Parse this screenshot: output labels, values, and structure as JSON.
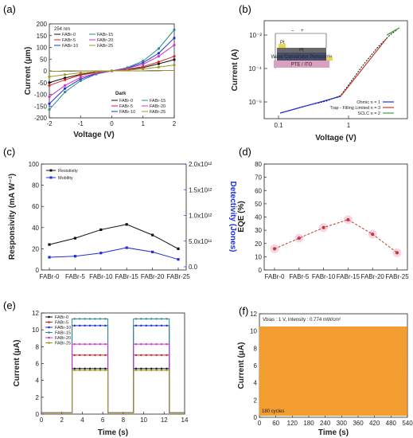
{
  "colors": {
    "black": "#111111",
    "red": "#d62020",
    "blue": "#1f2fd8",
    "teal": "#2a8c8c",
    "magenta": "#cc33cc",
    "olive": "#9a9a20",
    "orange": "#f39c30",
    "dark_red": "#c0392b",
    "pink": "#f2b6d6"
  },
  "chart_data": [
    {
      "panel": "(a)",
      "type": "line",
      "xlabel": "Voltage (V)",
      "ylabel": "Current (μm)",
      "xlim": [
        -2,
        2
      ],
      "ylim": [
        -200,
        200
      ],
      "xticks": [
        -2,
        -1,
        0,
        1,
        2
      ],
      "yticks": [
        -200,
        -150,
        -100,
        -50,
        0,
        50,
        100,
        150,
        200
      ],
      "annotation": "254 nm",
      "dark_label": "Dark",
      "x": [
        -2,
        -1.5,
        -1,
        -0.5,
        0,
        0.5,
        1,
        1.5,
        2
      ],
      "series": [
        {
          "name": "FABr-0",
          "color": "#111111",
          "light": [
            -50,
            -30,
            -15,
            -6,
            0,
            6,
            14,
            30,
            48
          ],
          "dark": [
            -2,
            -1,
            -0.5,
            -0.2,
            0,
            0.2,
            0.5,
            1,
            2
          ]
        },
        {
          "name": "FABr-5",
          "color": "#d62020",
          "light": [
            -62,
            -38,
            -18,
            -7,
            0,
            7,
            18,
            38,
            62
          ],
          "dark": [
            -2,
            -1,
            -0.5,
            -0.2,
            0,
            0.2,
            0.5,
            1,
            2
          ]
        },
        {
          "name": "FABr-10",
          "color": "#1f2fd8",
          "light": [
            -140,
            -75,
            -35,
            -12,
            0,
            12,
            35,
            75,
            140
          ],
          "dark": [
            -2,
            -1,
            -0.5,
            -0.2,
            0,
            0.2,
            0.5,
            1,
            2
          ]
        },
        {
          "name": "FABr-15",
          "color": "#2a8c8c",
          "light": [
            -165,
            -90,
            -42,
            -14,
            0,
            14,
            42,
            95,
            175
          ],
          "dark": [
            -2,
            -1,
            -0.5,
            -0.2,
            0,
            0.2,
            0.5,
            1,
            2
          ]
        },
        {
          "name": "FABr-20",
          "color": "#cc33cc",
          "light": [
            -110,
            -62,
            -28,
            -10,
            0,
            10,
            28,
            62,
            110
          ],
          "dark": [
            -2,
            -1,
            -0.5,
            -0.2,
            0,
            0.2,
            0.5,
            1,
            2
          ]
        },
        {
          "name": "FABr-25",
          "color": "#9a9a20",
          "light": [
            -25,
            -16,
            -8,
            -3,
            0,
            3,
            8,
            16,
            25
          ],
          "dark": [
            -2,
            -1,
            -0.5,
            -0.2,
            0,
            0.2,
            0.5,
            1,
            2
          ]
        }
      ]
    },
    {
      "panel": "(b)",
      "type": "line",
      "scale": "log-log",
      "xlabel": "Voltage (V)",
      "ylabel": "Current (A)",
      "xticks": [
        "0.1",
        "1"
      ],
      "yticks": [
        "10⁻⁶",
        "10⁻⁴",
        "10⁻²"
      ],
      "inset_label": "Pt",
      "inset_layers": [
        "Pt",
        "Wave Conversion Perovskite",
        "PTE / ITO"
      ],
      "inset_signs": [
        "–",
        "+"
      ],
      "legend": [
        "Ohmic n = 1",
        "Trap - Filling Limited n = 3",
        "SCLC n = 2"
      ],
      "legend_colors": [
        "#1f2fd8",
        "#c0392b",
        "#3aa83a"
      ]
    },
    {
      "panel": "(c)",
      "type": "line",
      "ylabel": "Responsivity (mA W⁻¹)",
      "y2label": "Detectivity (Jones)",
      "categories": [
        "FABr-0",
        "FABr-5",
        "FABr-10",
        "FABr-15",
        "FABr-20",
        "FABr-25"
      ],
      "ylim": [
        0,
        100
      ],
      "yticks": [
        0,
        20,
        40,
        60,
        80,
        100
      ],
      "y2ticks": [
        "0.0",
        "5.0x10¹¹",
        "1.0x10¹²",
        "1.5x10¹²",
        "2.0x10¹²"
      ],
      "series": [
        {
          "name": "Resistivity",
          "color": "#111111",
          "values": [
            24,
            30,
            38,
            43,
            33,
            20
          ]
        },
        {
          "name": "Mobility",
          "color": "#1f2fd8",
          "values": [
            12,
            13,
            16,
            21,
            17,
            10
          ]
        }
      ]
    },
    {
      "panel": "(d)",
      "type": "line",
      "ylabel": "EQE (%)",
      "categories": [
        "FABr-0",
        "FABr-5",
        "FABr-10",
        "FABr-15",
        "FABr-20",
        "FABr-25"
      ],
      "ylim": [
        0,
        80
      ],
      "yticks": [
        0,
        10,
        20,
        30,
        40,
        50,
        60,
        70,
        80
      ],
      "series": [
        {
          "name": "",
          "color": "#c0392b",
          "values": [
            16,
            24,
            32,
            38,
            27,
            13
          ]
        }
      ]
    },
    {
      "panel": "(e)",
      "type": "line",
      "xlabel": "Time (s)",
      "ylabel": "Current (μA)",
      "xlim": [
        0,
        14
      ],
      "ylim": [
        0,
        12
      ],
      "xticks": [
        0,
        2,
        4,
        6,
        8,
        10,
        12,
        14
      ],
      "yticks": [
        0,
        2,
        4,
        6,
        8,
        10,
        12
      ],
      "on_intervals": [
        [
          3,
          6.5
        ],
        [
          9,
          12.5
        ]
      ],
      "series": [
        {
          "name": "FABr-0",
          "color": "#111111",
          "on_value": 5.4
        },
        {
          "name": "FABr-5",
          "color": "#d62020",
          "on_value": 7.0
        },
        {
          "name": "FABr-10",
          "color": "#1f2fd8",
          "on_value": 10.5
        },
        {
          "name": "FABr-15",
          "color": "#2a8c8c",
          "on_value": 11.3
        },
        {
          "name": "FABr-20",
          "color": "#cc33cc",
          "on_value": 8.3
        },
        {
          "name": "FABr-25",
          "color": "#9a9a20",
          "on_value": 5.2
        }
      ]
    },
    {
      "panel": "(f)",
      "type": "line",
      "xlabel": "Time (s)",
      "ylabel": "Current (μA)",
      "xlim": [
        0,
        540
      ],
      "ylim": [
        0,
        12
      ],
      "xticks": [
        0,
        60,
        120,
        180,
        240,
        300,
        360,
        420,
        480,
        540
      ],
      "yticks": [
        0,
        2,
        4,
        6,
        8,
        10,
        12
      ],
      "annotation": "Vbias : 1 V, Intensity : 0.774 mW/cm²",
      "cycles_label": "180 cycles",
      "cycles": 180,
      "on_value": 10.5,
      "color": "#f39c30"
    }
  ]
}
